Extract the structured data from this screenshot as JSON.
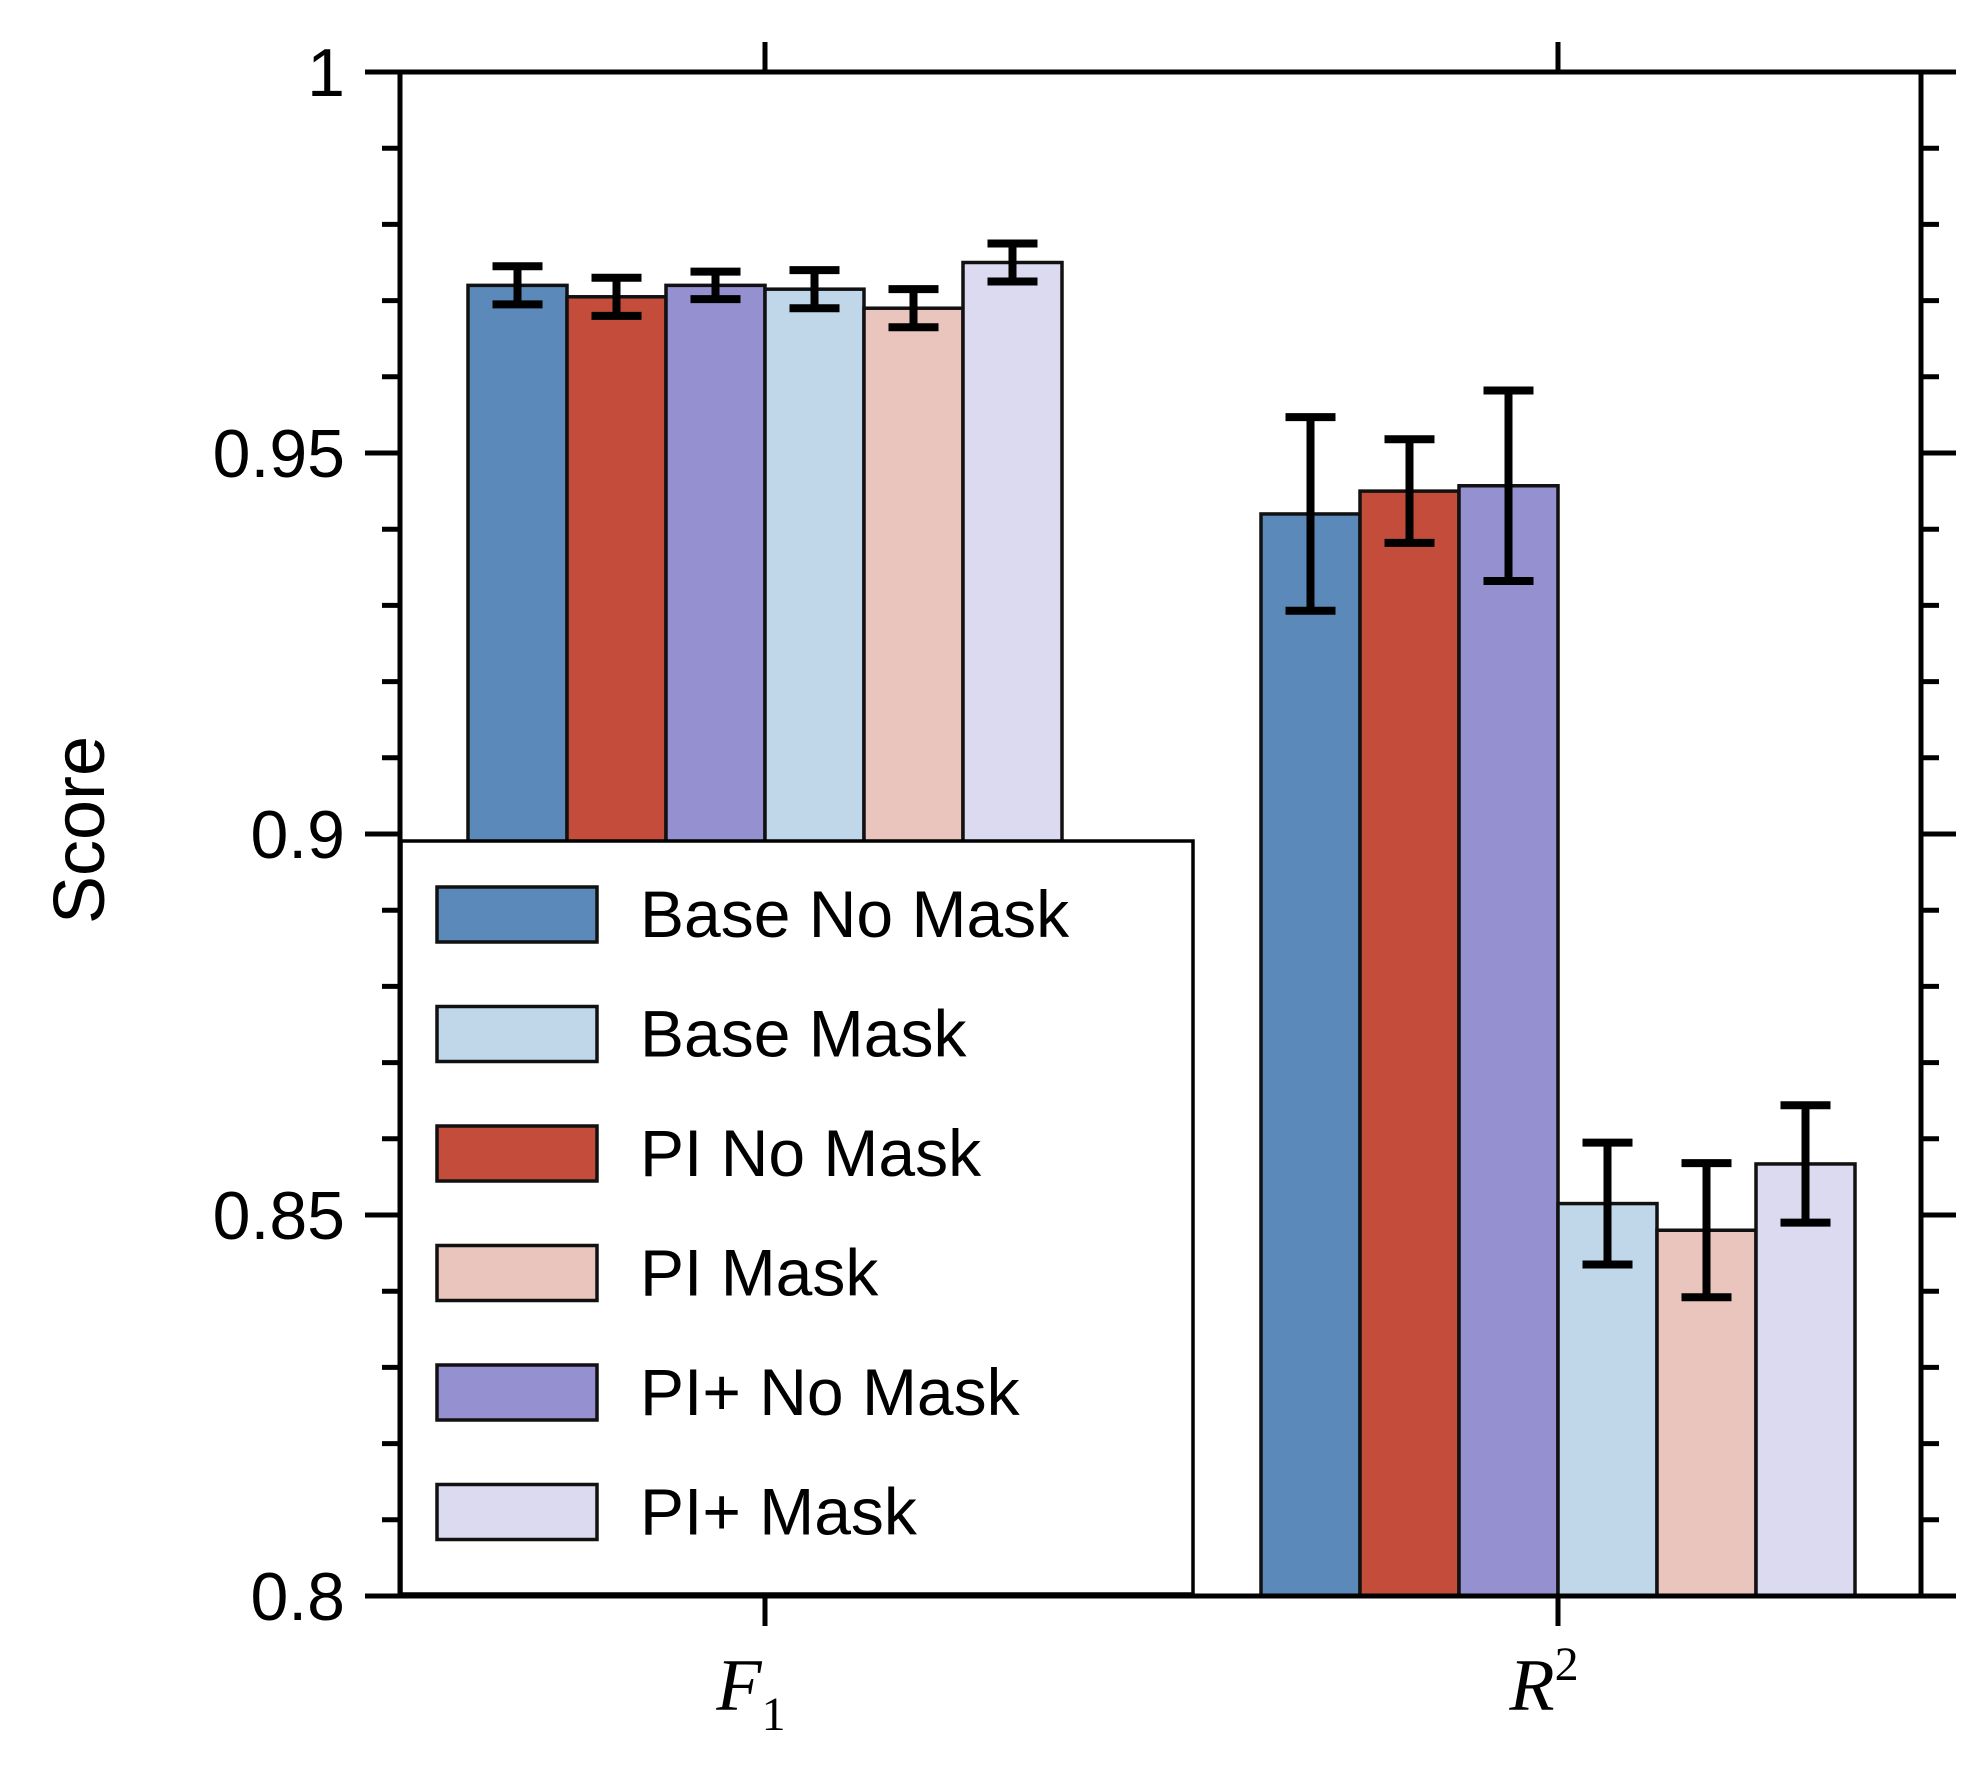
{
  "chart_data": {
    "type": "bar",
    "title": "",
    "xlabel": "",
    "ylabel": "Score",
    "ylim": [
      0.8,
      1.0
    ],
    "yticks": [
      "0.8",
      "0.85",
      "0.9",
      "0.95",
      "1"
    ],
    "categories": [
      {
        "base": "F",
        "sub": "1",
        "sup": ""
      },
      {
        "base": "R",
        "sub": "",
        "sup": "2"
      }
    ],
    "series_order_in_group": [
      [
        "Base No Mask",
        "PI No Mask",
        "PI+ No Mask",
        "Base Mask",
        "PI Mask",
        "PI+ Mask"
      ],
      [
        "Base No Mask",
        "PI No Mask",
        "PI+ No Mask",
        "Base Mask",
        "PI Mask",
        "PI+ Mask"
      ]
    ],
    "series": [
      {
        "name": "Base No Mask",
        "color": "#5b8aba",
        "values": [
          0.972,
          0.942
        ],
        "errors": [
          0.0025,
          0.0127
        ]
      },
      {
        "name": "Base Mask",
        "color": "#c0d7ea",
        "values": [
          0.9715,
          0.8515
        ],
        "errors": [
          0.0025,
          0.008
        ]
      },
      {
        "name": "PI No Mask",
        "color": "#c44c3a",
        "values": [
          0.9705,
          0.945
        ],
        "errors": [
          0.0025,
          0.0068
        ]
      },
      {
        "name": "PI Mask",
        "color": "#e9c5bd",
        "values": [
          0.969,
          0.848
        ],
        "errors": [
          0.0025,
          0.0088
        ]
      },
      {
        "name": "PI+ No Mask",
        "color": "#9590d0",
        "values": [
          0.972,
          0.9457
        ],
        "errors": [
          0.0018,
          0.0125
        ]
      },
      {
        "name": "PI+ Mask",
        "color": "#dcdaf0",
        "values": [
          0.975,
          0.8567
        ],
        "errors": [
          0.0025,
          0.0077
        ]
      }
    ],
    "legend": {
      "position": "lower-left",
      "entries": [
        "Base No Mask",
        "Base Mask",
        "PI No Mask",
        "PI Mask",
        "PI+ No Mask",
        "PI+ Mask"
      ]
    },
    "grid": false
  }
}
